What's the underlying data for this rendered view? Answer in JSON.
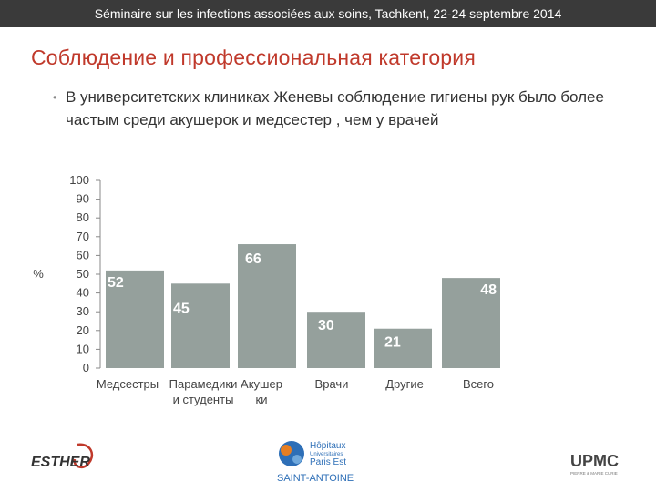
{
  "header": {
    "conference": "Séminaire sur les infections associées aux soins, Tachkent, 22-24 septembre 2014"
  },
  "slide": {
    "title": "Соблюдение и профессиональная категория",
    "bullet": "В университетских клиниках Женевы соблюдение гигиены рук было более частым среди акушерок и медсестер , чем у врачей"
  },
  "chart_data": {
    "type": "bar",
    "ylabel": "%",
    "ylim": [
      0,
      100
    ],
    "yticks": [
      "100",
      "90",
      "80",
      "70",
      "60",
      "50",
      "40",
      "30",
      "20",
      "10",
      "0"
    ],
    "categories": [
      [
        "Медсестры"
      ],
      [
        "Парамедики",
        "и студенты"
      ],
      [
        "Акушер",
        "ки"
      ],
      [
        "Врачи"
      ],
      [
        "Другие"
      ],
      [
        "Всего"
      ]
    ],
    "values": [
      52,
      45,
      66,
      30,
      21,
      48
    ],
    "data_labels": [
      "52",
      "45",
      "66",
      "30",
      "21",
      "48"
    ],
    "bar_color": "#95a09c"
  },
  "logos": {
    "esther": "ESTHER",
    "hopitaux_line1": "Hôpitaux",
    "hopitaux_line2": "Universitaires",
    "hopitaux_line3": "Paris Est",
    "hopitaux_line4": "SAINT-ANTOINE",
    "upmc": "UPMC",
    "upmc_sub": "PIERRE & MARIE CURIE"
  }
}
